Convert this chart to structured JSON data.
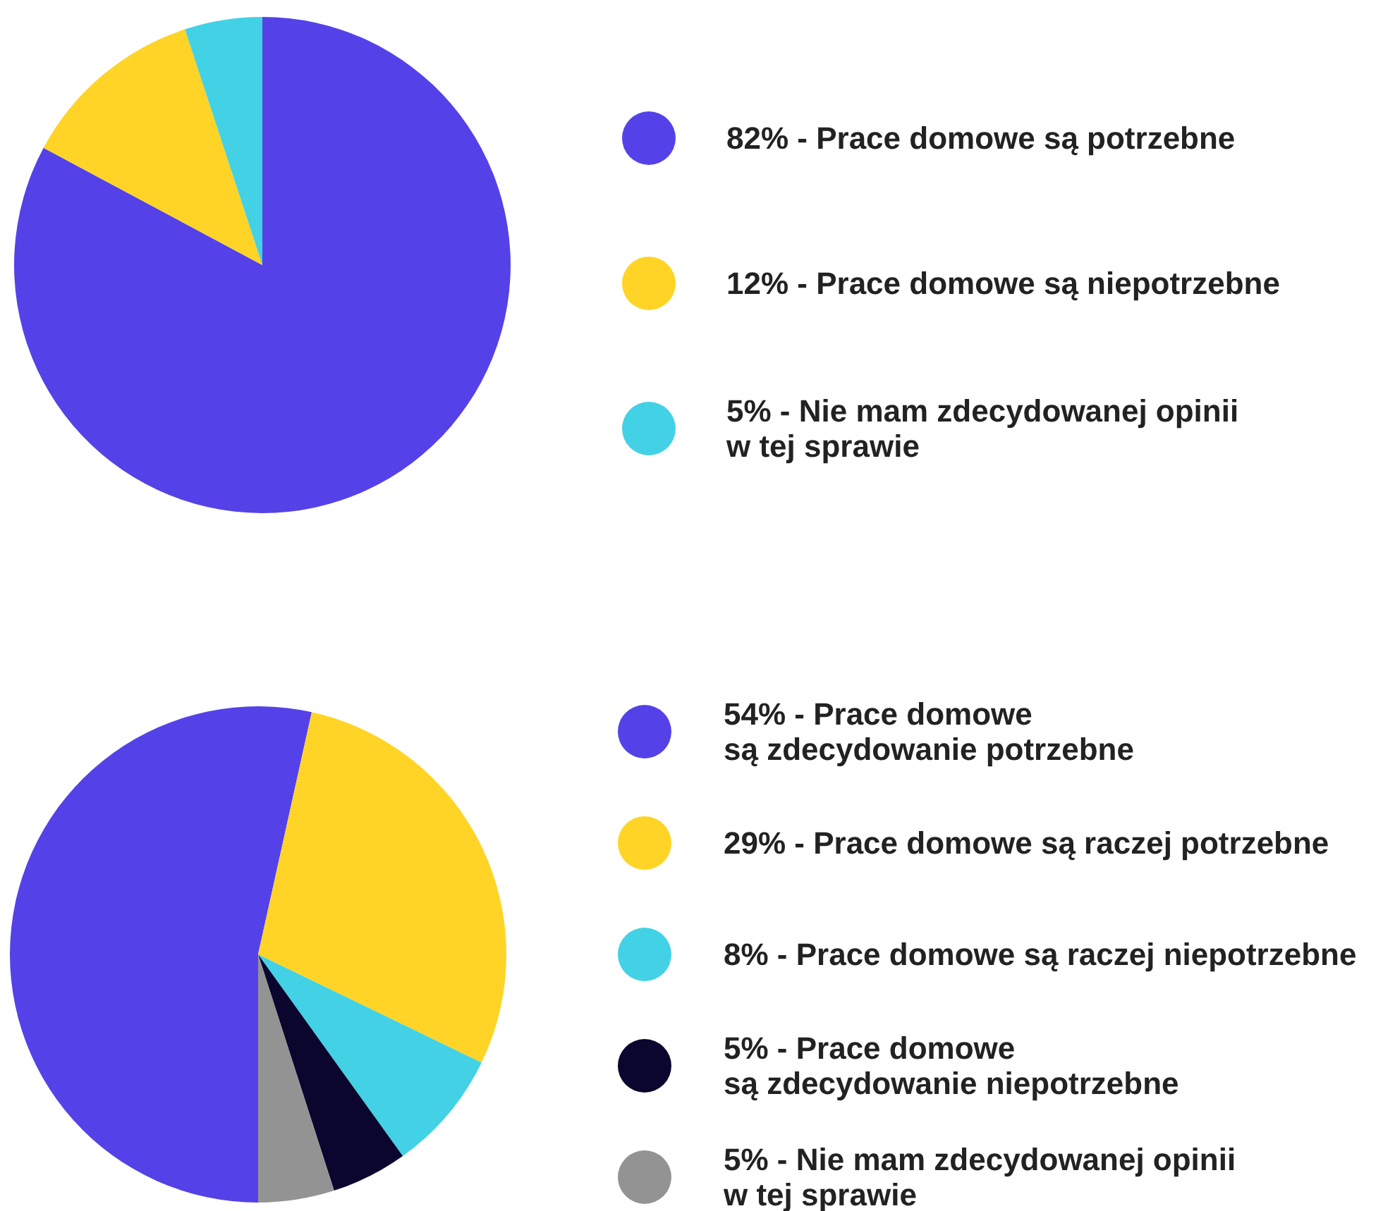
{
  "chart_data": [
    {
      "type": "pie",
      "categories": [
        "82% - Prace domowe są potrzebne",
        "12% - Prace domowe są niepotrzebne",
        "5% - Nie mam zdecydowanej opinii\nw tej sprawie"
      ],
      "values": [
        82,
        12,
        5
      ],
      "colors": [
        "#5442e8",
        "#ffd426",
        "#42d1e5"
      ],
      "legend": "right"
    },
    {
      "type": "pie",
      "categories": [
        "54% - Prace domowe\nsą zdecydowanie potrzebne",
        "29% - Prace domowe są raczej potrzebne",
        "8% - Prace domowe są raczej niepotrzebne",
        "5% - Prace domowe\nsą zdecydowanie niepotrzebne",
        "5% - Nie mam zdecydowanej opinii\nw tej sprawie"
      ],
      "values": [
        54,
        29,
        8,
        5,
        5
      ],
      "colors": [
        "#5442e8",
        "#ffd426",
        "#42d1e5",
        "#0b062e",
        "#939393"
      ],
      "legend": "right"
    }
  ]
}
